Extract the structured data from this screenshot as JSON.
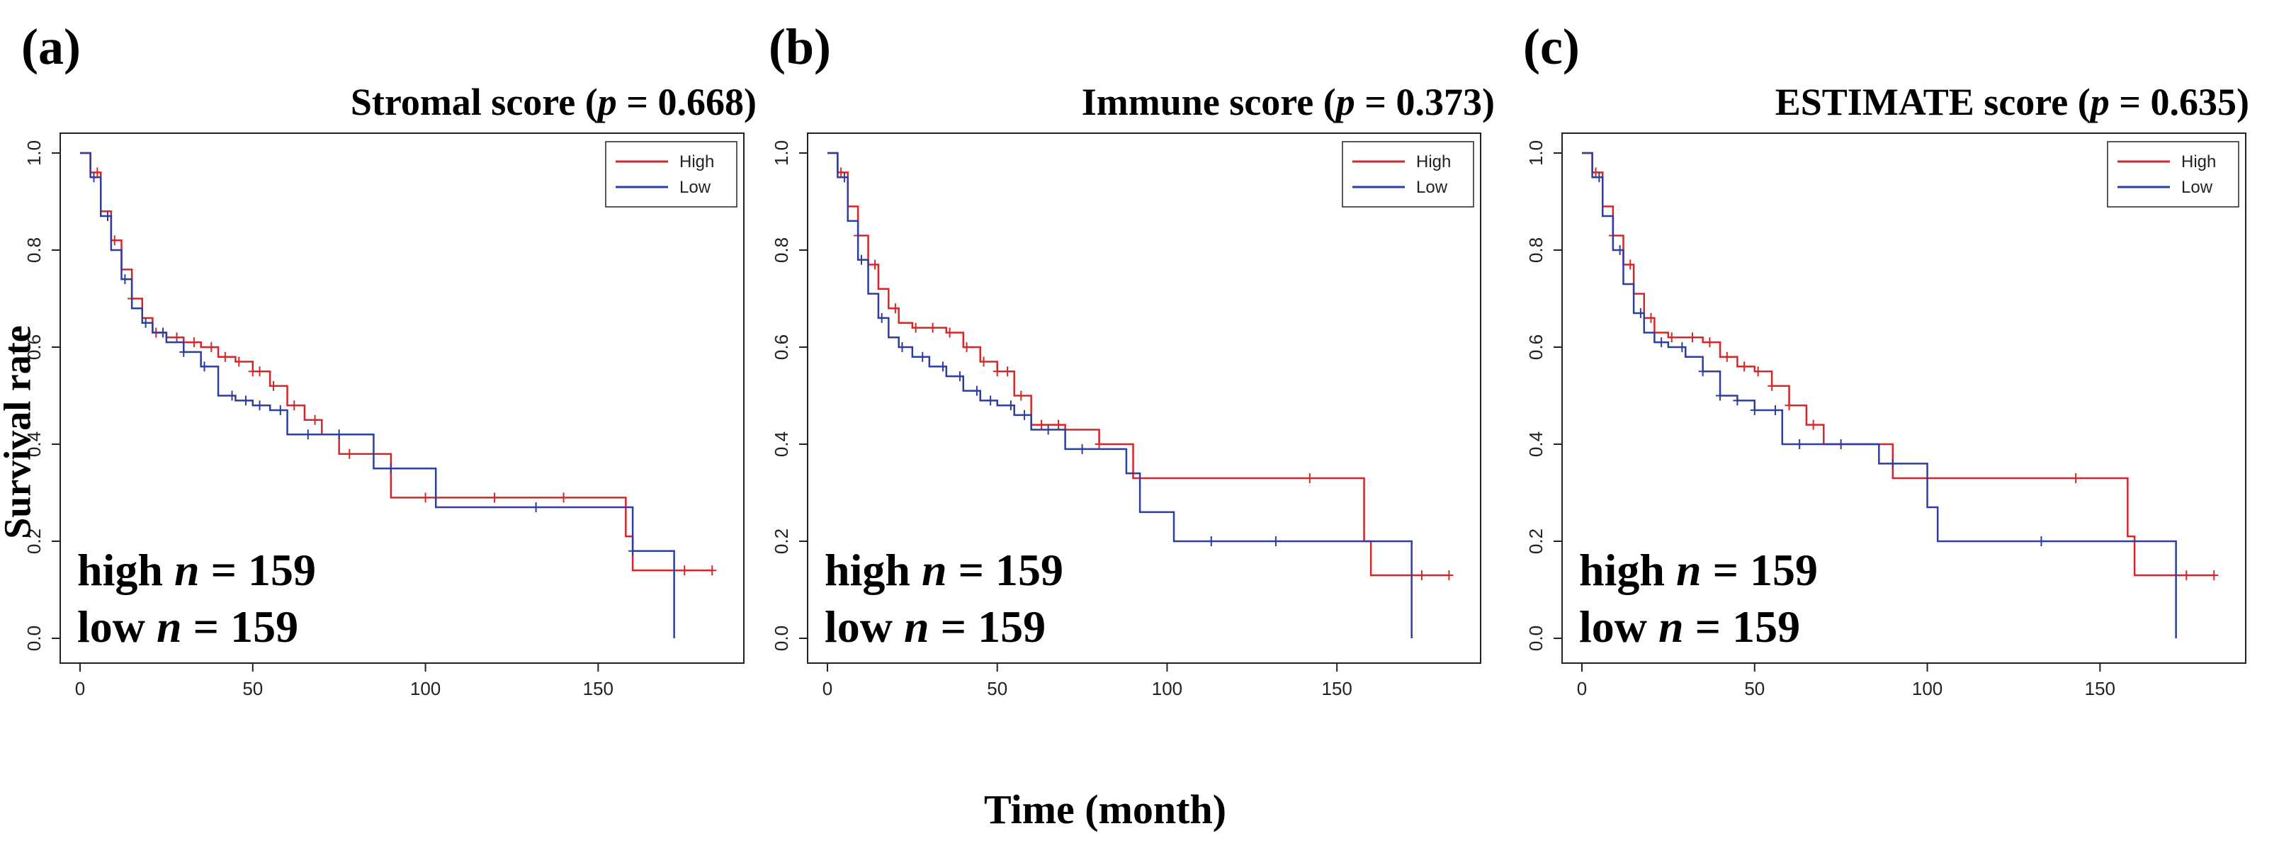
{
  "figure": {
    "ylabel": "Survival rate",
    "xlabel": "Time (month)"
  },
  "colors": {
    "high": "#d62728",
    "low": "#2c3e9e"
  },
  "chart_data": [
    {
      "type": "line",
      "panel_label": "(a)",
      "title_name": "Stromal score (",
      "title_p": "p",
      "title_rest": " = 0.668)",
      "xlim": [
        0,
        185
      ],
      "ylim": [
        0,
        1.0
      ],
      "xticks": [
        "0",
        "50",
        "100",
        "150"
      ],
      "xtick_values": [
        0,
        50,
        100,
        150
      ],
      "yticks": [
        "0.0",
        "0.2",
        "0.4",
        "0.6",
        "0.8",
        "1.0"
      ],
      "ytick_values": [
        0,
        0.2,
        0.4,
        0.6,
        0.8,
        1.0
      ],
      "legend": [
        "High",
        "Low"
      ],
      "annot_high_prefix": "high ",
      "annot_high_n": "n",
      "annot_high_rest": " = 159",
      "annot_low_prefix": "low ",
      "annot_low_n": "n",
      "annot_low_rest": " = 159",
      "series": [
        {
          "name": "High",
          "x": [
            0,
            3,
            6,
            9,
            12,
            15,
            18,
            21,
            25,
            30,
            35,
            40,
            45,
            50,
            55,
            60,
            65,
            70,
            75,
            80,
            90,
            100,
            120,
            140,
            155,
            158,
            160,
            165,
            183
          ],
          "y": [
            1.0,
            0.96,
            0.88,
            0.82,
            0.76,
            0.7,
            0.66,
            0.63,
            0.62,
            0.61,
            0.6,
            0.58,
            0.57,
            0.55,
            0.52,
            0.48,
            0.45,
            0.42,
            0.38,
            0.38,
            0.29,
            0.29,
            0.29,
            0.29,
            0.29,
            0.21,
            0.14,
            0.14,
            0.14
          ],
          "censor_x": [
            5,
            10,
            15,
            22,
            28,
            33,
            38,
            42,
            46,
            50,
            52,
            56,
            62,
            68,
            78,
            100,
            120,
            140,
            175,
            183
          ]
        },
        {
          "name": "Low",
          "x": [
            0,
            3,
            6,
            9,
            12,
            15,
            18,
            21,
            25,
            30,
            35,
            40,
            45,
            50,
            55,
            60,
            70,
            80,
            85,
            90,
            100,
            103,
            130,
            150,
            157,
            160,
            172,
            172
          ],
          "y": [
            1.0,
            0.95,
            0.87,
            0.8,
            0.74,
            0.68,
            0.65,
            0.63,
            0.61,
            0.59,
            0.56,
            0.5,
            0.49,
            0.48,
            0.47,
            0.42,
            0.42,
            0.42,
            0.35,
            0.35,
            0.35,
            0.27,
            0.27,
            0.27,
            0.27,
            0.18,
            0.18,
            0.0
          ],
          "censor_x": [
            4,
            8,
            13,
            19,
            24,
            30,
            36,
            44,
            48,
            52,
            58,
            66,
            75,
            90,
            132,
            160
          ]
        }
      ]
    },
    {
      "type": "line",
      "panel_label": "(b)",
      "title_name": "Immune score (",
      "title_p": "p",
      "title_rest": " = 0.373)",
      "xlim": [
        0,
        185
      ],
      "ylim": [
        0,
        1.0
      ],
      "xticks": [
        "0",
        "50",
        "100",
        "150"
      ],
      "xtick_values": [
        0,
        50,
        100,
        150
      ],
      "yticks": [
        "0.0",
        "0.2",
        "0.4",
        "0.6",
        "0.8",
        "1.0"
      ],
      "ytick_values": [
        0,
        0.2,
        0.4,
        0.6,
        0.8,
        1.0
      ],
      "legend": [
        "High",
        "Low"
      ],
      "annot_high_prefix": "high ",
      "annot_high_n": "n",
      "annot_high_rest": " = 159",
      "annot_low_prefix": "low ",
      "annot_low_n": "n",
      "annot_low_rest": " = 159",
      "series": [
        {
          "name": "High",
          "x": [
            0,
            3,
            6,
            9,
            12,
            15,
            18,
            21,
            25,
            30,
            35,
            40,
            45,
            50,
            55,
            60,
            70,
            80,
            90,
            100,
            120,
            140,
            155,
            158,
            160,
            165,
            183
          ],
          "y": [
            1.0,
            0.96,
            0.89,
            0.83,
            0.77,
            0.72,
            0.68,
            0.65,
            0.64,
            0.64,
            0.63,
            0.6,
            0.57,
            0.55,
            0.5,
            0.44,
            0.43,
            0.4,
            0.33,
            0.33,
            0.33,
            0.33,
            0.33,
            0.2,
            0.13,
            0.13,
            0.13
          ],
          "censor_x": [
            4,
            9,
            14,
            20,
            26,
            31,
            36,
            41,
            46,
            50,
            53,
            57,
            63,
            68,
            80,
            142,
            175,
            183
          ]
        },
        {
          "name": "Low",
          "x": [
            0,
            3,
            6,
            9,
            12,
            15,
            18,
            21,
            25,
            30,
            35,
            40,
            45,
            50,
            55,
            60,
            70,
            80,
            88,
            92,
            102,
            120,
            140,
            160,
            172,
            172
          ],
          "y": [
            1.0,
            0.95,
            0.86,
            0.78,
            0.71,
            0.66,
            0.62,
            0.6,
            0.58,
            0.56,
            0.54,
            0.51,
            0.49,
            0.48,
            0.46,
            0.43,
            0.39,
            0.39,
            0.34,
            0.26,
            0.2,
            0.2,
            0.2,
            0.2,
            0.2,
            0.0
          ],
          "censor_x": [
            5,
            10,
            16,
            22,
            28,
            34,
            39,
            44,
            48,
            54,
            58,
            65,
            75,
            113,
            132
          ]
        }
      ]
    },
    {
      "type": "line",
      "panel_label": "(c)",
      "title_name": "ESTIMATE score (",
      "title_p": "p",
      "title_rest": " = 0.635)",
      "xlim": [
        0,
        185
      ],
      "ylim": [
        0,
        1.0
      ],
      "xticks": [
        "0",
        "50",
        "100",
        "150"
      ],
      "xtick_values": [
        0,
        50,
        100,
        150
      ],
      "yticks": [
        "0.0",
        "0.2",
        "0.4",
        "0.6",
        "0.8",
        "1.0"
      ],
      "ytick_values": [
        0,
        0.2,
        0.4,
        0.6,
        0.8,
        1.0
      ],
      "legend": [
        "High",
        "Low"
      ],
      "annot_high_prefix": "high ",
      "annot_high_n": "n",
      "annot_high_rest": " = 159",
      "annot_low_prefix": "low ",
      "annot_low_n": "n",
      "annot_low_rest": " = 159",
      "series": [
        {
          "name": "High",
          "x": [
            0,
            3,
            6,
            9,
            12,
            15,
            18,
            21,
            25,
            30,
            35,
            40,
            45,
            50,
            55,
            60,
            65,
            70,
            80,
            90,
            100,
            120,
            140,
            155,
            158,
            160,
            165,
            183
          ],
          "y": [
            1.0,
            0.96,
            0.89,
            0.83,
            0.77,
            0.71,
            0.66,
            0.63,
            0.62,
            0.62,
            0.61,
            0.58,
            0.56,
            0.55,
            0.52,
            0.48,
            0.44,
            0.4,
            0.4,
            0.33,
            0.33,
            0.33,
            0.33,
            0.33,
            0.21,
            0.13,
            0.13,
            0.13
          ],
          "censor_x": [
            4,
            9,
            14,
            20,
            26,
            32,
            37,
            42,
            47,
            51,
            55,
            60,
            67,
            143,
            175,
            183
          ]
        },
        {
          "name": "Low",
          "x": [
            0,
            3,
            6,
            9,
            12,
            15,
            18,
            21,
            25,
            30,
            35,
            40,
            45,
            50,
            55,
            58,
            70,
            80,
            86,
            90,
            100,
            103,
            130,
            150,
            157,
            160,
            172,
            172
          ],
          "y": [
            1.0,
            0.95,
            0.87,
            0.8,
            0.73,
            0.67,
            0.63,
            0.61,
            0.6,
            0.58,
            0.55,
            0.5,
            0.49,
            0.47,
            0.47,
            0.4,
            0.4,
            0.4,
            0.36,
            0.36,
            0.27,
            0.2,
            0.2,
            0.2,
            0.2,
            0.2,
            0.2,
            0.0
          ],
          "censor_x": [
            5,
            11,
            17,
            23,
            29,
            35,
            40,
            45,
            50,
            56,
            63,
            75,
            90,
            133
          ]
        }
      ]
    }
  ]
}
